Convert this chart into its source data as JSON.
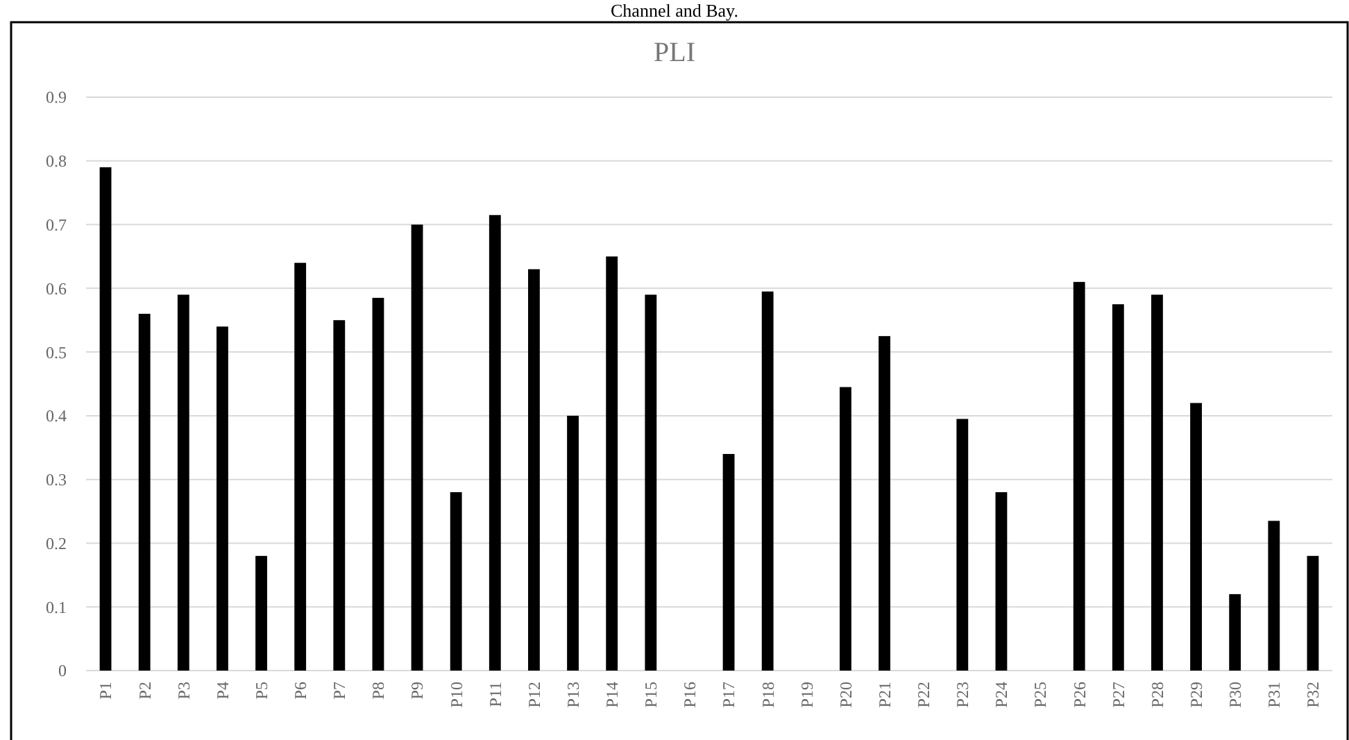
{
  "chart_data": {
    "type": "bar",
    "title": "PLI",
    "annotations": [
      "Channel and Bay."
    ],
    "categories": [
      "P1",
      "P2",
      "P3",
      "P4",
      "P5",
      "P6",
      "P7",
      "P8",
      "P9",
      "P10",
      "P11",
      "P12",
      "P13",
      "P14",
      "P15",
      "P16",
      "P17",
      "P18",
      "P19",
      "P20",
      "P21",
      "P22",
      "P23",
      "P24",
      "P25",
      "P26",
      "P27",
      "P28",
      "P29",
      "P30",
      "P31",
      "P32"
    ],
    "values": [
      0.79,
      0.56,
      0.59,
      0.54,
      0.18,
      0.64,
      0.55,
      0.585,
      0.7,
      0.28,
      0.715,
      0.63,
      0.4,
      0.65,
      0.59,
      null,
      0.34,
      0.595,
      null,
      0.445,
      0.525,
      null,
      0.395,
      0.28,
      null,
      0.61,
      0.575,
      0.59,
      0.42,
      0.12,
      0.235,
      0.18
    ],
    "color": "#000000",
    "ylim": [
      0,
      0.9
    ],
    "yticks": [
      0,
      0.1,
      0.2,
      0.3,
      0.4,
      0.5,
      0.6,
      0.7,
      0.8,
      0.9
    ],
    "grid": "y"
  }
}
